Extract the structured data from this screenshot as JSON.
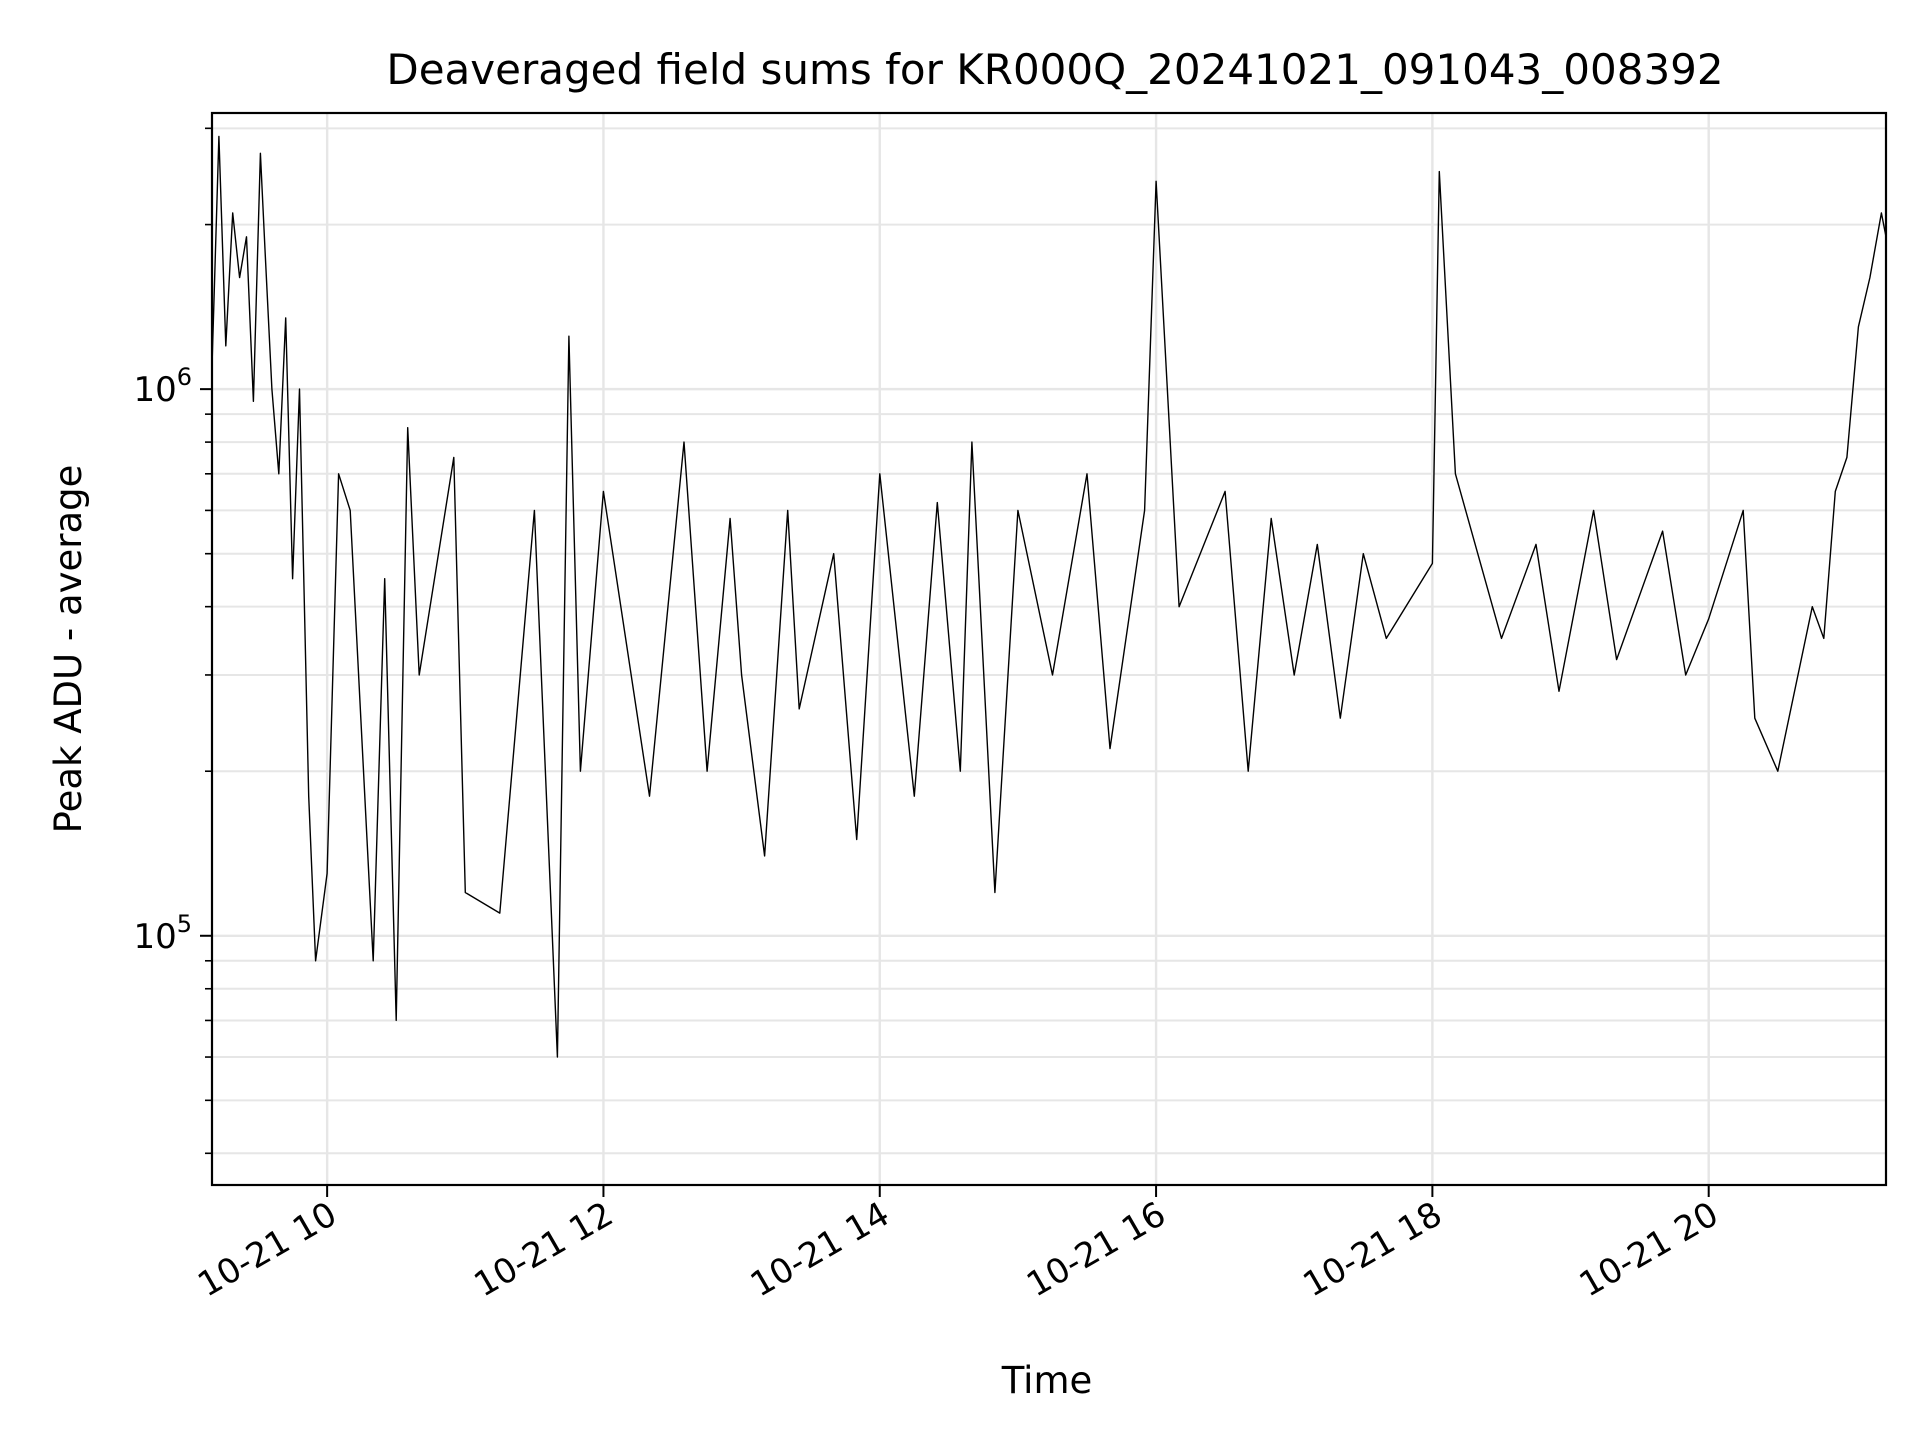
{
  "chart_data": {
    "type": "line",
    "title": "Deaveraged field sums for KR000Q_20241021_091043_008392",
    "xlabel": "Time",
    "ylabel": "Peak ADU - average",
    "yscale": "log",
    "ylim": [
      35000,
      3200000
    ],
    "xlim": [
      "2024-10-21 09:10",
      "2024-10-21 21:17"
    ],
    "grid": true,
    "x_ticks": [
      {
        "value": "2024-10-21 10:00",
        "label": "10-21 10"
      },
      {
        "value": "2024-10-21 12:00",
        "label": "10-21 12"
      },
      {
        "value": "2024-10-21 14:00",
        "label": "10-21 14"
      },
      {
        "value": "2024-10-21 16:00",
        "label": "10-21 16"
      },
      {
        "value": "2024-10-21 18:00",
        "label": "10-21 18"
      },
      {
        "value": "2024-10-21 20:00",
        "label": "10-21 20"
      }
    ],
    "y_ticks": [
      {
        "value": 100000,
        "base": "10",
        "exp": "5"
      },
      {
        "value": 1000000,
        "base": "10",
        "exp": "6"
      }
    ],
    "line_color": "#000000",
    "series": [
      {
        "x": [
          "2024-10-21 09:10",
          "2024-10-21 09:13",
          "2024-10-21 09:16",
          "2024-10-21 09:19",
          "2024-10-21 09:22",
          "2024-10-21 09:25",
          "2024-10-21 09:28",
          "2024-10-21 09:31",
          "2024-10-21 09:33",
          "2024-10-21 09:36",
          "2024-10-21 09:39",
          "2024-10-21 09:42",
          "2024-10-21 09:45",
          "2024-10-21 09:48",
          "2024-10-21 09:52",
          "2024-10-21 09:55",
          "2024-10-21 10:00",
          "2024-10-21 10:05",
          "2024-10-21 10:10",
          "2024-10-21 10:20",
          "2024-10-21 10:25",
          "2024-10-21 10:30",
          "2024-10-21 10:35",
          "2024-10-21 10:40",
          "2024-10-21 10:55",
          "2024-10-21 11:00",
          "2024-10-21 11:15",
          "2024-10-21 11:30",
          "2024-10-21 11:40",
          "2024-10-21 11:45",
          "2024-10-21 11:50",
          "2024-10-21 12:00",
          "2024-10-21 12:20",
          "2024-10-21 12:35",
          "2024-10-21 12:45",
          "2024-10-21 12:55",
          "2024-10-21 13:00",
          "2024-10-21 13:10",
          "2024-10-21 13:20",
          "2024-10-21 13:25",
          "2024-10-21 13:40",
          "2024-10-21 13:50",
          "2024-10-21 14:00",
          "2024-10-21 14:15",
          "2024-10-21 14:25",
          "2024-10-21 14:35",
          "2024-10-21 14:40",
          "2024-10-21 14:50",
          "2024-10-21 15:00",
          "2024-10-21 15:15",
          "2024-10-21 15:30",
          "2024-10-21 15:40",
          "2024-10-21 15:55",
          "2024-10-21 16:00",
          "2024-10-21 16:10",
          "2024-10-21 16:30",
          "2024-10-21 16:40",
          "2024-10-21 16:50",
          "2024-10-21 17:00",
          "2024-10-21 17:10",
          "2024-10-21 17:20",
          "2024-10-21 17:30",
          "2024-10-21 17:40",
          "2024-10-21 18:00",
          "2024-10-21 18:03",
          "2024-10-21 18:10",
          "2024-10-21 18:30",
          "2024-10-21 18:45",
          "2024-10-21 18:55",
          "2024-10-21 19:10",
          "2024-10-21 19:20",
          "2024-10-21 19:40",
          "2024-10-21 19:50",
          "2024-10-21 20:00",
          "2024-10-21 20:15",
          "2024-10-21 20:20",
          "2024-10-21 20:30",
          "2024-10-21 20:45",
          "2024-10-21 20:50",
          "2024-10-21 20:55",
          "2024-10-21 21:00",
          "2024-10-21 21:05",
          "2024-10-21 21:10",
          "2024-10-21 21:15",
          "2024-10-21 21:17"
        ],
        "y": [
          1100000,
          2900000,
          1200000,
          2100000,
          1600000,
          1900000,
          950000,
          2700000,
          1800000,
          1000000,
          700000,
          1350000,
          450000,
          1000000,
          180000,
          90000,
          130000,
          700000,
          600000,
          90000,
          450000,
          70000,
          850000,
          300000,
          750000,
          120000,
          110000,
          600000,
          60000,
          1250000,
          200000,
          650000,
          180000,
          800000,
          200000,
          580000,
          300000,
          140000,
          600000,
          260000,
          500000,
          150000,
          700000,
          180000,
          620000,
          200000,
          800000,
          120000,
          600000,
          300000,
          700000,
          220000,
          600000,
          2400000,
          400000,
          650000,
          200000,
          580000,
          300000,
          520000,
          250000,
          500000,
          350000,
          480000,
          2500000,
          700000,
          350000,
          520000,
          280000,
          600000,
          320000,
          550000,
          300000,
          380000,
          600000,
          250000,
          200000,
          400000,
          350000,
          650000,
          750000,
          1300000,
          1600000,
          2100000,
          1900000
        ]
      }
    ]
  }
}
